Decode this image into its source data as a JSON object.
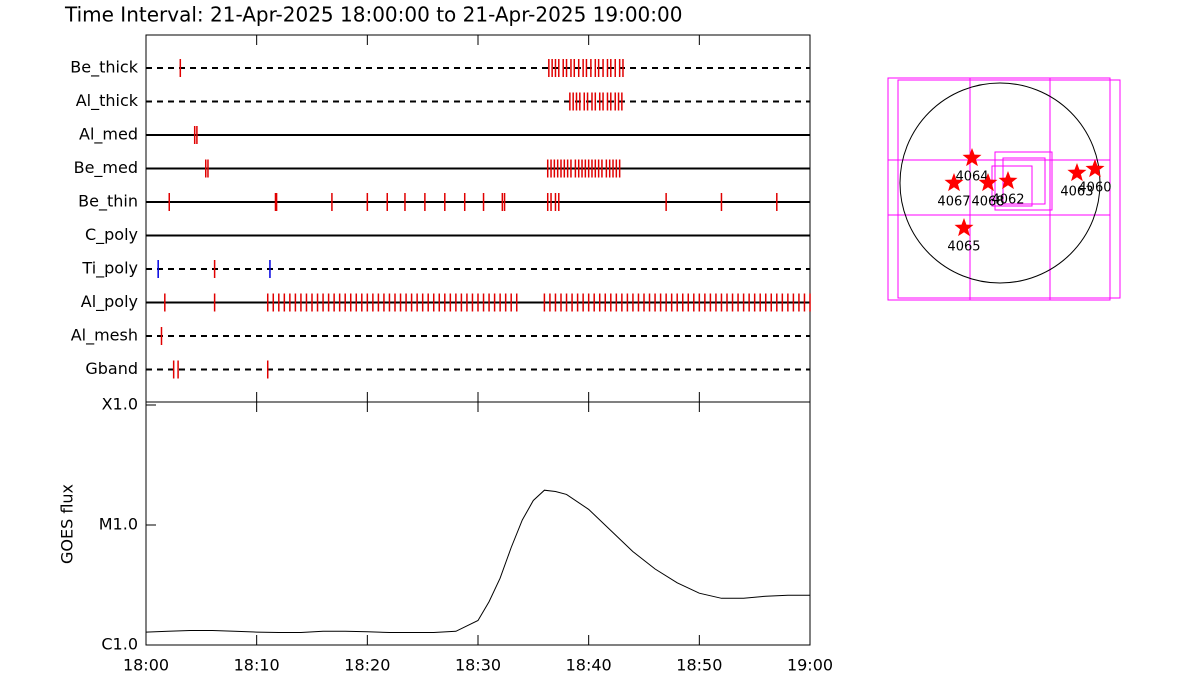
{
  "chart_data": [
    {
      "type": "event",
      "title": "Time Interval: 21-Apr-2025 18:00:00 to 21-Apr-2025 19:00:00",
      "color": "#e00000",
      "blue_color": "#0000e0",
      "xlim": [
        0,
        60
      ],
      "rows": [
        {
          "name": "Be_thick",
          "dashed": true,
          "times": [
            3.1,
            36.4,
            36.7,
            37.0,
            37.3,
            37.7,
            38.0,
            38.4,
            38.7,
            39.1,
            39.5,
            39.8,
            40.2,
            40.6,
            40.9,
            41.3,
            41.7,
            42.0,
            42.4,
            42.8,
            43.1
          ]
        },
        {
          "name": "Al_thick",
          "dashed": true,
          "times": [
            38.3,
            38.6,
            38.9,
            39.2,
            39.6,
            39.9,
            40.3,
            40.6,
            41.0,
            41.3,
            41.7,
            42.0,
            42.4,
            42.7,
            43.0
          ]
        },
        {
          "name": "Al_med",
          "dashed": false,
          "times": [
            4.4,
            4.6
          ]
        },
        {
          "name": "Be_med",
          "dashed": false,
          "times": [
            5.4,
            5.6,
            36.3,
            36.6,
            36.9,
            37.2,
            37.5,
            37.8,
            38.1,
            38.4,
            38.8,
            39.1,
            39.4,
            39.7,
            40.0,
            40.3,
            40.6,
            40.9,
            41.2,
            41.6,
            41.9,
            42.2,
            42.5,
            42.8
          ]
        },
        {
          "name": "Be_thin",
          "dashed": false,
          "times": [
            2.1,
            11.7,
            11.8,
            16.8,
            20.0,
            21.8,
            23.4,
            25.2,
            27.0,
            28.8,
            30.5,
            32.2,
            32.4,
            36.3,
            36.6,
            37.0,
            37.3,
            47.0,
            52.0,
            57.0
          ]
        },
        {
          "name": "C_poly",
          "dashed": false,
          "times": []
        },
        {
          "name": "Ti_poly",
          "dashed": true,
          "times": [
            6.2
          ],
          "blue_times": [
            1.1,
            11.2
          ]
        },
        {
          "name": "Al_poly",
          "dashed": false,
          "times": [
            1.7,
            6.2,
            11.0,
            11.5,
            12.0,
            12.5,
            13.0,
            13.5,
            14.0,
            14.5,
            15.0,
            15.5,
            16.0,
            16.5,
            17.0,
            17.5,
            18.0,
            18.5,
            19.0,
            19.5,
            20.0,
            20.5,
            21.0,
            21.5,
            22.0,
            22.5,
            23.0,
            23.5,
            24.0,
            24.5,
            25.0,
            25.5,
            26.0,
            26.5,
            27.0,
            27.5,
            28.0,
            28.5,
            29.0,
            29.5,
            30.0,
            30.5,
            31.0,
            31.5,
            32.0,
            32.5,
            33.0,
            33.5,
            36.0,
            36.5,
            37.0,
            37.5,
            38.0,
            38.5,
            39.0,
            39.5,
            40.0,
            40.5,
            41.0,
            41.5,
            42.0,
            42.5,
            43.0,
            43.5,
            44.0,
            44.5,
            45.0,
            45.5,
            46.0,
            46.5,
            47.0,
            47.5,
            48.0,
            48.5,
            49.0,
            49.5,
            50.0,
            50.5,
            51.0,
            51.5,
            52.0,
            52.5,
            53.0,
            53.5,
            54.0,
            54.5,
            55.0,
            55.5,
            56.0,
            56.5,
            57.0,
            57.5,
            58.0,
            58.5,
            59.0,
            59.5,
            60.0
          ]
        },
        {
          "name": "Al_mesh",
          "dashed": true,
          "times": [
            1.4
          ]
        },
        {
          "name": "Gband",
          "dashed": true,
          "times": [
            2.5,
            2.9,
            11.0
          ]
        }
      ]
    },
    {
      "type": "line",
      "y_label": "GOES flux",
      "color": "#000000",
      "log_scale": true,
      "x": [
        0,
        2,
        4,
        6,
        8,
        10,
        12,
        14,
        16,
        18,
        20,
        22,
        24,
        26,
        28,
        30,
        31,
        32,
        33,
        34,
        35,
        36,
        37,
        38,
        40,
        42,
        44,
        46,
        48,
        50,
        52,
        54,
        56,
        58,
        60
      ],
      "values": [
        1.28e-06,
        1.3e-06,
        1.32e-06,
        1.32e-06,
        1.3e-06,
        1.28e-06,
        1.27e-06,
        1.27e-06,
        1.3e-06,
        1.3e-06,
        1.29e-06,
        1.27e-06,
        1.27e-06,
        1.27e-06,
        1.3e-06,
        1.6e-06,
        2.3e-06,
        3.6e-06,
        6.5e-06,
        1.1e-05,
        1.6e-05,
        1.95e-05,
        1.9e-05,
        1.8e-05,
        1.35e-05,
        9e-06,
        6e-06,
        4.3e-06,
        3.3e-06,
        2.7e-06,
        2.45e-06,
        2.45e-06,
        2.55e-06,
        2.6e-06,
        2.6e-06
      ],
      "xlim": [
        0,
        60
      ],
      "xticks": [
        {
          "value": 0,
          "label": "18:00"
        },
        {
          "value": 10,
          "label": "18:10"
        },
        {
          "value": 20,
          "label": "18:20"
        },
        {
          "value": 30,
          "label": "18:30"
        },
        {
          "value": 40,
          "label": "18:40"
        },
        {
          "value": 50,
          "label": "18:50"
        },
        {
          "value": 60,
          "label": "19:00"
        }
      ],
      "ylim": [
        1e-06,
        0.0001
      ],
      "yticks": [
        {
          "value": 1e-06,
          "label": "C1.0"
        },
        {
          "value": 1e-05,
          "label": "M1.0"
        },
        {
          "value": 0.0001,
          "label": "X1.0"
        }
      ]
    },
    {
      "type": "map",
      "color": "#ff0000",
      "xlim": [
        -1066,
        1066
      ],
      "ylim": [
        -1066,
        1066
      ],
      "points": [
        {
          "label": "4064",
          "x": -269,
          "y": 240
        },
        {
          "label": "4067",
          "x": -442,
          "y": 0
        },
        {
          "label": "4068",
          "x": -115,
          "y": 0
        },
        {
          "label": "4062",
          "x": 77,
          "y": 19
        },
        {
          "label": "4065",
          "x": -346,
          "y": -432
        },
        {
          "label": "4063",
          "x": 739,
          "y": 96
        },
        {
          "label": "4060",
          "x": 912,
          "y": 134
        }
      ]
    }
  ]
}
